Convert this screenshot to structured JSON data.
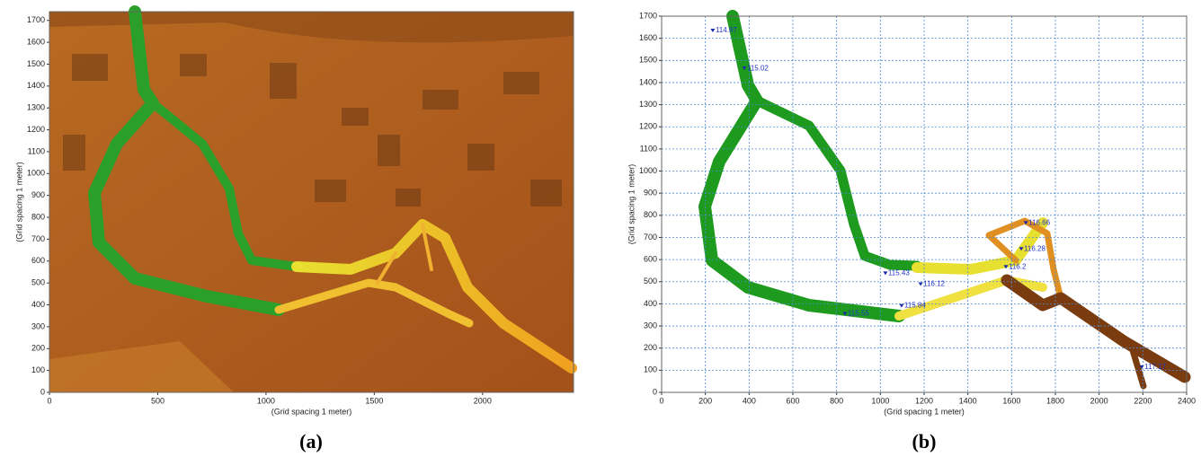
{
  "chart_data": [
    {
      "type": "map",
      "label": "(a)",
      "x_label": "(Grid spacing 1 meter)",
      "y_label": "(Grid spacing 1 meter)",
      "xlim": [
        0,
        2420
      ],
      "ylim": [
        0,
        1740
      ],
      "xticks": [
        0,
        500,
        1000,
        1500,
        2000
      ],
      "yticks": [
        0,
        100,
        200,
        300,
        400,
        500,
        600,
        700,
        800,
        900,
        1000,
        1100,
        1200,
        1300,
        1400,
        1500,
        1600,
        1700
      ],
      "grid": false
    },
    {
      "type": "map",
      "label": "(b)",
      "x_label": "(Grid spacing 1 meter)",
      "y_label": "(Grid spacing 1 meter)",
      "xlim": [
        0,
        2400
      ],
      "ylim": [
        0,
        1700
      ],
      "xticks": [
        0,
        200,
        400,
        600,
        800,
        1000,
        1200,
        1400,
        1600,
        1800,
        2000,
        2200,
        2400
      ],
      "yticks": [
        0,
        100,
        200,
        300,
        400,
        500,
        600,
        700,
        800,
        900,
        1000,
        1100,
        1200,
        1300,
        1400,
        1500,
        1600,
        1700
      ],
      "grid": true,
      "points": {
        "x": [
          234,
          378,
          1023,
          1184,
          1097,
          838,
          1665,
          1644,
          1574,
          2195
        ],
        "y": [
          1635,
          1464,
          538,
          489,
          391,
          355,
          766,
          648,
          567,
          114
        ],
        "values": [
          114.97,
          115.02,
          115.43,
          116.12,
          115.84,
          115.55,
          116.66,
          116.28,
          116.2,
          117.17
        ]
      }
    }
  ]
}
